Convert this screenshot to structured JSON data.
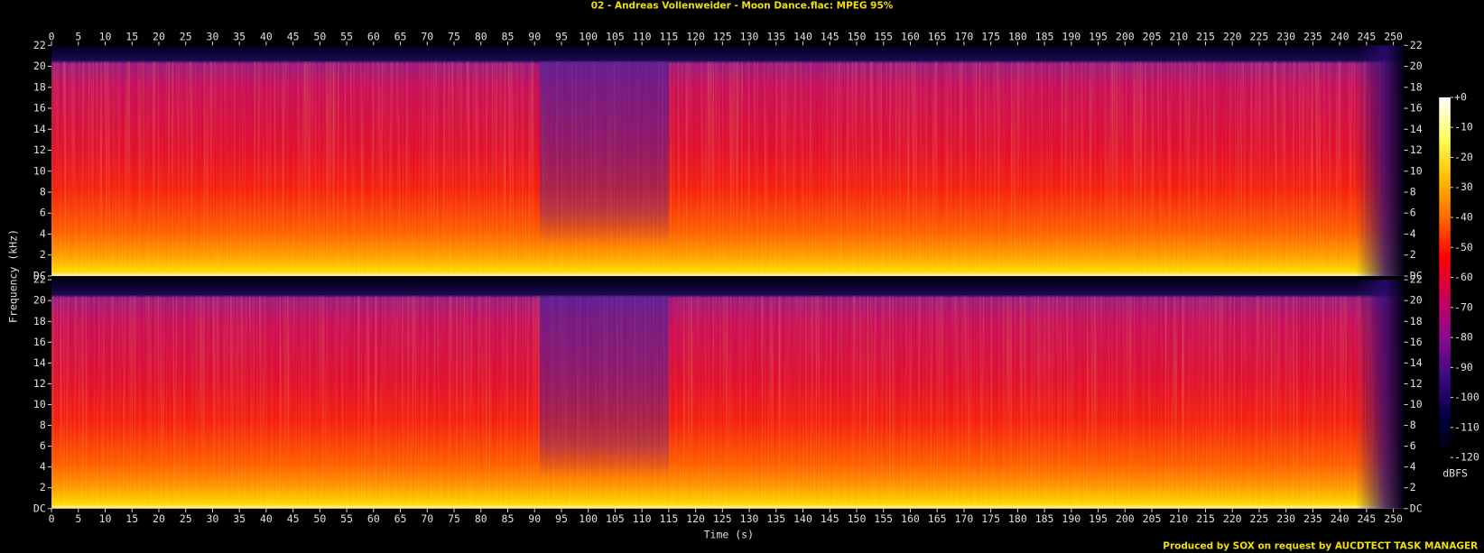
{
  "chart_data": {
    "type": "spectrogram",
    "title": "02 - Andreas Vollenweider - Moon Dance.flac: MPEG 95%",
    "xlabel": "Time (s)",
    "ylabel": "Frequency (kHz)",
    "xlim": [
      0,
      252
    ],
    "xticks": [
      0,
      5,
      10,
      15,
      20,
      25,
      30,
      35,
      40,
      45,
      50,
      55,
      60,
      65,
      70,
      75,
      80,
      85,
      90,
      95,
      100,
      105,
      110,
      115,
      120,
      125,
      130,
      135,
      140,
      145,
      150,
      155,
      160,
      165,
      170,
      175,
      180,
      185,
      190,
      195,
      200,
      205,
      210,
      215,
      220,
      225,
      230,
      235,
      240,
      245,
      250
    ],
    "ylim": [
      0,
      22
    ],
    "yticks": [
      {
        "value": 0,
        "label": "DC"
      },
      2,
      4,
      6,
      8,
      10,
      12,
      14,
      16,
      18,
      20,
      22
    ],
    "colorbar": {
      "label": "dBFS",
      "lim": [
        -120,
        0
      ],
      "ticks": [
        {
          "value": 0,
          "label": "+0"
        },
        -10,
        -20,
        -30,
        -40,
        -50,
        -60,
        -70,
        -80,
        -90,
        -100,
        -110,
        -120
      ],
      "colors": [
        "#000000",
        "#000040",
        "#3a0a80",
        "#8a0a90",
        "#c8005a",
        "#ff0000",
        "#ff6a00",
        "#ffc000",
        "#ffff60",
        "#ffffff"
      ]
    },
    "footer": "Produced by SOX on request by AUCDTECT TASK MANAGER"
  }
}
